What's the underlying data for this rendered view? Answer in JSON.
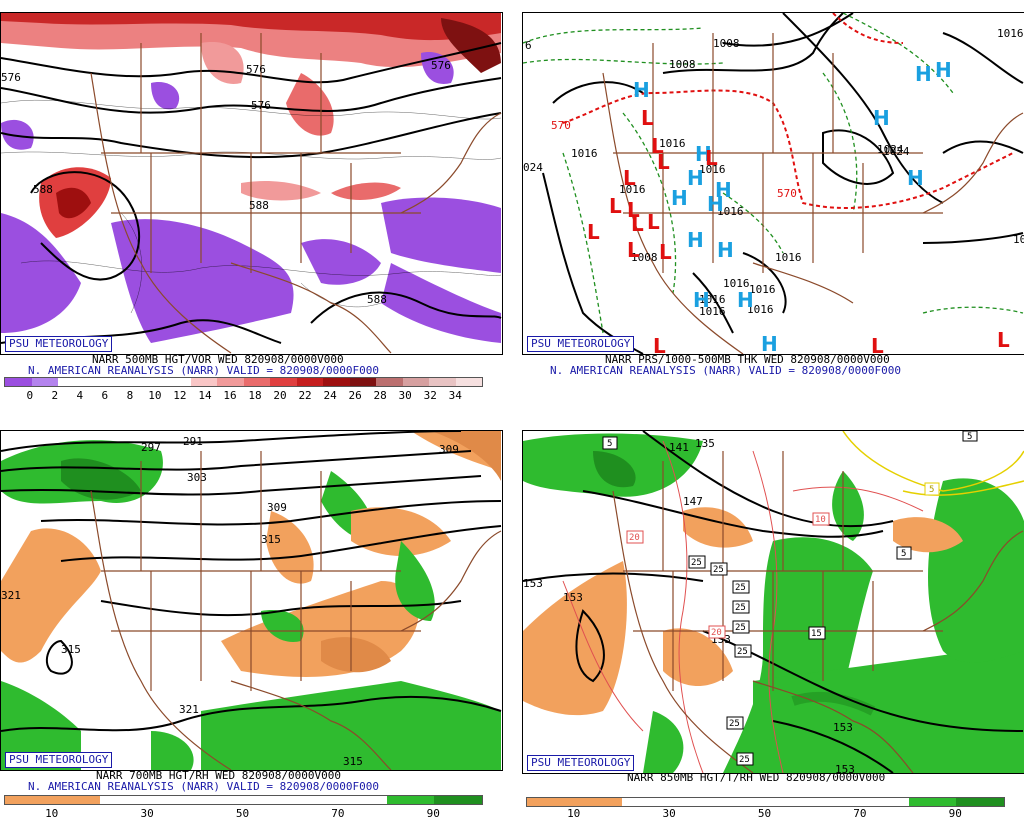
{
  "badge": "PSU METEOROLOGY",
  "panels": [
    {
      "caption1": "NARR 500MB HGT/VOR WED 820908/0000V000",
      "caption2": "N. AMERICAN REANALYSIS (NARR) VALID = 820908/0000F000",
      "colorbar": [
        "#9b4fe0",
        "#b484ee",
        "#ffffff",
        "#ffffff",
        "#ffffff",
        "#ffffff",
        "#ffffff",
        "#f9c6c6",
        "#f19a9a",
        "#e96b6b",
        "#e03f3f",
        "#c51e1e",
        "#9e0f0f",
        "#7e1111",
        "#bb6f6f",
        "#d6a0a0",
        "#e8c3c3",
        "#f6e0e0"
      ],
      "ticks": [
        "0",
        "2",
        "4",
        "6",
        "8",
        "10",
        "12",
        "14",
        "16",
        "18",
        "20",
        "22",
        "24",
        "26",
        "28",
        "30",
        "32",
        "34"
      ],
      "contour_labels": [
        "576",
        "576",
        "576",
        "576",
        "588",
        "588",
        "588"
      ]
    },
    {
      "caption1": "NARR PRS/1000-500MB THK WED 820908/0000V000",
      "caption2": "N. AMERICAN REANALYSIS (NARR) VALID = 820908/0000F000",
      "contour_labels": [
        "1008",
        "1008",
        "570",
        "1016",
        "1016",
        "1016",
        "1016",
        "1016",
        "1016",
        "1016",
        "024",
        "1024",
        "1016",
        "570",
        "1008",
        "10",
        "6",
        "1016",
        "1024",
        "1016",
        "1016",
        "1016"
      ],
      "highs_label": "H",
      "lows_label": "L"
    },
    {
      "caption1": "NARR 700MB HGT/RH WED 820908/0000V000",
      "caption2": "N. AMERICAN REANALYSIS (NARR) VALID = 820908/0000F000",
      "colorbar": [
        "#f2a15d",
        "#f2a15d",
        "#ffffff",
        "#ffffff",
        "#ffffff",
        "#ffffff",
        "#ffffff",
        "#ffffff",
        "#2fbb2f",
        "#1f8f1f"
      ],
      "ticks": [
        "10",
        "30",
        "50",
        "70",
        "90"
      ],
      "contour_labels": [
        "297",
        "291",
        "303",
        "309",
        "315",
        "321",
        "315",
        "321",
        "315",
        "309"
      ]
    },
    {
      "caption1": "NARR 850MB HGT/T/RH WED 820908/0000V000",
      "colorbar": [
        "#f2a15d",
        "#f2a15d",
        "#ffffff",
        "#ffffff",
        "#ffffff",
        "#ffffff",
        "#ffffff",
        "#ffffff",
        "#2fbb2f",
        "#1f8f1f"
      ],
      "ticks": [
        "10",
        "30",
        "50",
        "70",
        "90"
      ],
      "contour_labels": [
        "141",
        "135",
        "147",
        "153",
        "153",
        "153",
        "153",
        "153"
      ],
      "box_labels": [
        "5",
        "10",
        "20",
        "25",
        "25",
        "25",
        "25",
        "25",
        "20",
        "25",
        "15",
        "25",
        "25",
        "5",
        "5",
        "5"
      ]
    }
  ]
}
